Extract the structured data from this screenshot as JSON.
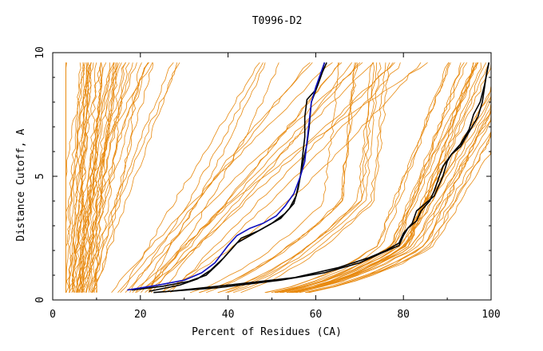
{
  "chart_data": {
    "type": "line",
    "title": "T0996-D2",
    "xlabel": "Percent of Residues (CA)",
    "ylabel": "Distance Cutoff, A",
    "xlim": [
      0,
      100
    ],
    "ylim": [
      0,
      10
    ],
    "x_ticks": [
      "0",
      "20",
      "40",
      "60",
      "80",
      "100"
    ],
    "y_ticks": [
      "0",
      "5",
      "10"
    ],
    "colors": {
      "background_models": "#e88a10",
      "highlight_black": "#000000",
      "highlight_blue": "#1010c0",
      "axis": "#000000"
    },
    "highlighted_series": [
      {
        "color": "#000000",
        "points": [
          [
            18,
            0.4
          ],
          [
            25,
            0.55
          ],
          [
            31,
            0.75
          ],
          [
            35,
            1.0
          ],
          [
            38,
            1.5
          ],
          [
            41,
            2.1
          ],
          [
            43,
            2.5
          ],
          [
            47,
            2.8
          ],
          [
            50,
            3.1
          ],
          [
            53,
            3.5
          ],
          [
            55,
            3.9
          ],
          [
            56,
            4.5
          ],
          [
            57,
            5.5
          ],
          [
            58,
            6.3
          ],
          [
            58.5,
            7.0
          ],
          [
            59,
            8.0
          ],
          [
            60.5,
            8.7
          ],
          [
            61.5,
            9.2
          ],
          [
            62.5,
            9.6
          ]
        ]
      },
      {
        "color": "#000000",
        "points": [
          [
            22,
            0.35
          ],
          [
            29,
            0.6
          ],
          [
            33,
            0.85
          ],
          [
            36,
            1.2
          ],
          [
            39,
            1.7
          ],
          [
            42,
            2.3
          ],
          [
            46,
            2.7
          ],
          [
            49,
            3.0
          ],
          [
            52,
            3.3
          ],
          [
            54,
            3.7
          ],
          [
            55.5,
            4.2
          ],
          [
            56.5,
            5.0
          ],
          [
            57,
            5.8
          ],
          [
            57.5,
            6.6
          ],
          [
            57.5,
            7.4
          ],
          [
            58,
            8.1
          ],
          [
            60,
            8.5
          ],
          [
            61,
            9.0
          ],
          [
            62,
            9.6
          ]
        ]
      },
      {
        "color": "#1010c0",
        "points": [
          [
            17,
            0.4
          ],
          [
            24,
            0.6
          ],
          [
            30,
            0.8
          ],
          [
            34,
            1.1
          ],
          [
            37,
            1.5
          ],
          [
            40,
            2.2
          ],
          [
            42,
            2.6
          ],
          [
            45,
            2.9
          ],
          [
            48,
            3.1
          ],
          [
            51,
            3.4
          ],
          [
            53,
            3.8
          ],
          [
            55,
            4.3
          ],
          [
            56.5,
            5.0
          ],
          [
            57.5,
            5.6
          ],
          [
            58,
            6.4
          ],
          [
            58.5,
            7.2
          ],
          [
            59,
            8.0
          ],
          [
            60,
            8.6
          ],
          [
            61,
            9.1
          ],
          [
            62,
            9.6
          ]
        ]
      },
      {
        "color": "#000000",
        "points": [
          [
            27,
            0.35
          ],
          [
            40,
            0.6
          ],
          [
            55,
            0.9
          ],
          [
            65,
            1.3
          ],
          [
            72,
            1.7
          ],
          [
            76,
            2.0
          ],
          [
            79,
            2.3
          ],
          [
            80,
            2.7
          ],
          [
            82,
            3.1
          ],
          [
            83,
            3.6
          ],
          [
            85,
            3.9
          ],
          [
            87,
            4.2
          ],
          [
            88,
            4.6
          ],
          [
            89,
            5.0
          ],
          [
            90,
            5.6
          ],
          [
            91,
            5.9
          ],
          [
            93,
            6.2
          ],
          [
            95,
            6.8
          ],
          [
            97,
            7.4
          ],
          [
            98,
            8.0
          ],
          [
            98.5,
            8.6
          ],
          [
            99,
            9.2
          ],
          [
            99.5,
            9.6
          ]
        ]
      },
      {
        "color": "#000000",
        "points": [
          [
            23,
            0.3
          ],
          [
            38,
            0.5
          ],
          [
            52,
            0.8
          ],
          [
            62,
            1.1
          ],
          [
            70,
            1.5
          ],
          [
            75,
            1.9
          ],
          [
            79,
            2.2
          ],
          [
            80,
            2.6
          ],
          [
            81,
            2.9
          ],
          [
            83,
            3.2
          ],
          [
            84,
            3.6
          ],
          [
            86,
            4.0
          ],
          [
            87,
            4.4
          ],
          [
            88,
            4.9
          ],
          [
            89,
            5.4
          ],
          [
            91,
            5.9
          ],
          [
            93,
            6.3
          ],
          [
            95,
            6.9
          ],
          [
            96,
            7.5
          ],
          [
            97.5,
            8.0
          ],
          [
            98.5,
            8.7
          ],
          [
            99.5,
            9.6
          ]
        ]
      }
    ],
    "background_series_note_hidden": true
  }
}
